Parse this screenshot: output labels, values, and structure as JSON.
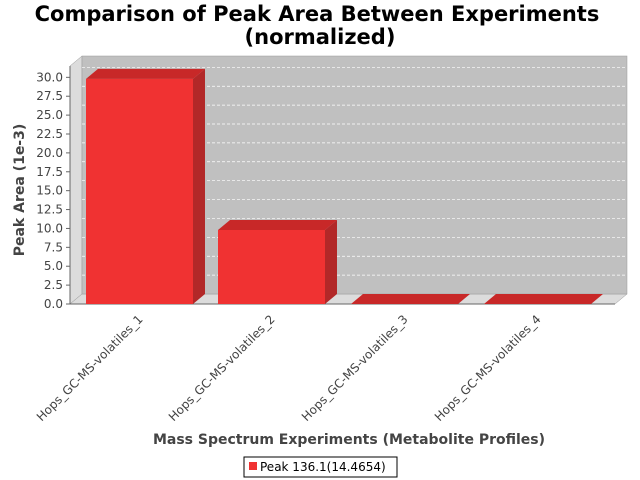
{
  "chart_data": {
    "type": "bar",
    "title": "Comparison of Peak Area Between Experiments",
    "subtitle": "(normalized)",
    "xlabel": "Mass Spectrum Experiments (Metabolite Profiles)",
    "ylabel": "Peak Area (1e-3)",
    "categories": [
      "Hops_GC-MS-volatiles_1",
      "Hops_GC-MS-volatiles_2",
      "Hops_GC-MS-volatiles_3",
      "Hops_GC-MS-volatiles_4"
    ],
    "series": [
      {
        "name": "Peak 136.1(14.4654)",
        "values": [
          29.8,
          9.8,
          0.0,
          0.0
        ],
        "color": "#f03232"
      }
    ],
    "ylim": [
      0,
      31.5
    ],
    "yticks": [
      "0.0",
      "2.5",
      "5.0",
      "7.5",
      "10.0",
      "12.5",
      "15.0",
      "17.5",
      "20.0",
      "22.5",
      "25.0",
      "27.5",
      "30.0"
    ],
    "grid": true,
    "legend_position": "bottom",
    "colors": {
      "plot_background": "#c0c0c0",
      "wall_side": "#dcdcdc",
      "bar": "#f03232",
      "bar_side": "#b22828",
      "bar_top": "#c82828"
    }
  }
}
